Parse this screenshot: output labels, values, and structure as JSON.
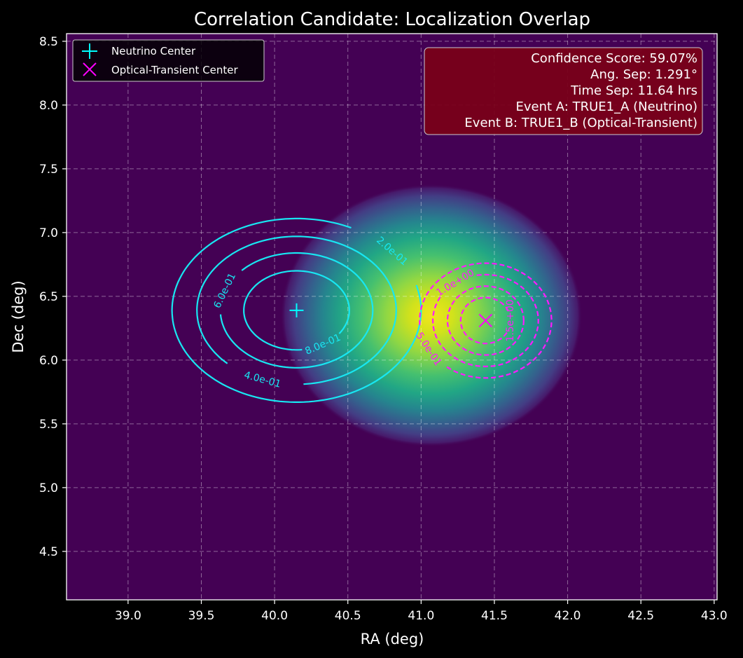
{
  "chart_data": {
    "type": "heatmap",
    "title": "Correlation Candidate: Localization Overlap",
    "xlabel": "RA (deg)",
    "ylabel": "Dec (deg)",
    "xlim": [
      38.58,
      43.02
    ],
    "ylim": [
      4.12,
      8.56
    ],
    "x_ticks": [
      "39.0",
      "39.5",
      "40.0",
      "40.5",
      "41.0",
      "41.5",
      "42.0",
      "42.5",
      "43.0"
    ],
    "y_ticks": [
      "4.5",
      "5.0",
      "5.5",
      "6.0",
      "6.5",
      "7.0",
      "7.5",
      "8.0",
      "8.5"
    ],
    "grid": true,
    "colormap": "viridis",
    "background_color": "#440154",
    "overlap_heatmap": {
      "center": [
        41.07,
        6.35
      ],
      "sigma_ra": 0.5,
      "sigma_dec": 0.45,
      "extent_radius": 1.03
    },
    "neutrino": {
      "name": "Neutrino Center",
      "center": [
        40.15,
        6.39
      ],
      "marker": "+",
      "color": "#00ffff",
      "contour_color": "#18e7f2",
      "contours": [
        {
          "level": "2.0e-01",
          "ra_radius": 0.85,
          "dec_radius": 0.72,
          "label_angle": 40
        },
        {
          "level": "4.0e-01",
          "ra_radius": 0.68,
          "dec_radius": 0.58,
          "label_angle": 250
        },
        {
          "level": "6.0e-01",
          "ra_radius": 0.52,
          "dec_radius": 0.45,
          "label_angle": 160
        },
        {
          "level": "8.0e-01",
          "ra_radius": 0.36,
          "dec_radius": 0.31,
          "label_angle": 300
        }
      ]
    },
    "optical": {
      "name": "Optical-Transient Center",
      "center": [
        41.44,
        6.31
      ],
      "marker": "x",
      "color": "#ff00ff",
      "contour_color": "#ff1aff",
      "contours": [
        {
          "level": "5.0e-01",
          "ra_radius": 0.45,
          "dec_radius": 0.45,
          "label_angle": 210
        },
        {
          "level": "1.0e+00",
          "ra_radius": 0.36,
          "dec_radius": 0.36,
          "label_angle": 125
        },
        {
          "level": "",
          "ra_radius": 0.26,
          "dec_radius": 0.27,
          "label_angle": 0
        },
        {
          "level": "1.5e+00",
          "ra_radius": 0.17,
          "dec_radius": 0.18,
          "label_angle": 0
        }
      ]
    },
    "legend": {
      "placement": "top-left",
      "entries": [
        "Neutrino Center",
        "Optical-Transient Center"
      ]
    },
    "info_box": {
      "placement": "top-right",
      "lines": [
        "Confidence Score: 59.07%",
        "Ang. Sep: 1.291°",
        "Time Sep: 11.64 hrs",
        "Event A: TRUE1_A (Neutrino)",
        "Event B: TRUE1_B (Optical-Transient)"
      ]
    }
  }
}
